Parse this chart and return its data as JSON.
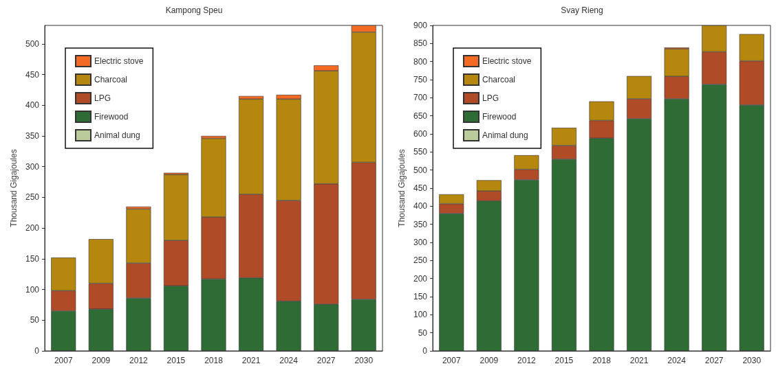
{
  "chart_data": [
    {
      "type": "bar",
      "title": "Kampong Speu",
      "ylabel": "Thousand Gigajoules",
      "stacked": true,
      "grid": false,
      "legend": "top left",
      "categories": [
        "2007",
        "2009",
        "2012",
        "2015",
        "2018",
        "2021",
        "2024",
        "2027",
        "2030"
      ],
      "ylim": [
        0,
        530
      ],
      "yticks": [
        0,
        50,
        100,
        150,
        200,
        250,
        300,
        350,
        400,
        450,
        500
      ],
      "series": [
        {
          "name": "Animal dung",
          "color": "#bccb9c",
          "values": [
            0,
            0,
            0,
            0,
            0,
            0,
            0,
            0,
            0
          ]
        },
        {
          "name": "Firewood",
          "color": "#2f6b35",
          "values": [
            65,
            68,
            86,
            106,
            117,
            119,
            81,
            76,
            84
          ]
        },
        {
          "name": "LPG",
          "color": "#b04b27",
          "values": [
            33,
            42,
            57,
            74,
            101,
            136,
            164,
            196,
            223
          ]
        },
        {
          "name": "Charcoal",
          "color": "#b5870f",
          "values": [
            54,
            72,
            88,
            107,
            128,
            155,
            165,
            184,
            212
          ]
        },
        {
          "name": "Electric stove",
          "color": "#f26a24",
          "values": [
            0,
            0,
            4,
            3,
            4,
            5,
            7,
            9,
            11
          ]
        }
      ]
    },
    {
      "type": "bar",
      "title": "Svay Rieng",
      "ylabel": "Thousand Gigajoules",
      "stacked": true,
      "grid": false,
      "legend": "top left",
      "categories": [
        "2007",
        "2009",
        "2012",
        "2015",
        "2018",
        "2021",
        "2024",
        "2027",
        "2030"
      ],
      "ylim": [
        0,
        900
      ],
      "yticks": [
        0,
        50,
        100,
        150,
        200,
        250,
        300,
        350,
        400,
        450,
        500,
        550,
        600,
        650,
        700,
        750,
        800,
        850,
        900
      ],
      "series": [
        {
          "name": "Animal dung",
          "color": "#bccb9c",
          "values": [
            0,
            0,
            0,
            0,
            0,
            0,
            0,
            0,
            0
          ]
        },
        {
          "name": "Firewood",
          "color": "#2f6b35",
          "values": [
            380,
            415,
            473,
            530,
            588,
            642,
            697,
            737,
            680
          ]
        },
        {
          "name": "LPG",
          "color": "#b04b27",
          "values": [
            27,
            27,
            29,
            38,
            49,
            55,
            62,
            90,
            122
          ]
        },
        {
          "name": "Charcoal",
          "color": "#b5870f",
          "values": [
            26,
            30,
            39,
            49,
            53,
            63,
            76,
            73,
            74
          ]
        },
        {
          "name": "Electric stove",
          "color": "#f26a24",
          "values": [
            0,
            0,
            0,
            0,
            0,
            0,
            4,
            0,
            0
          ]
        }
      ]
    }
  ]
}
